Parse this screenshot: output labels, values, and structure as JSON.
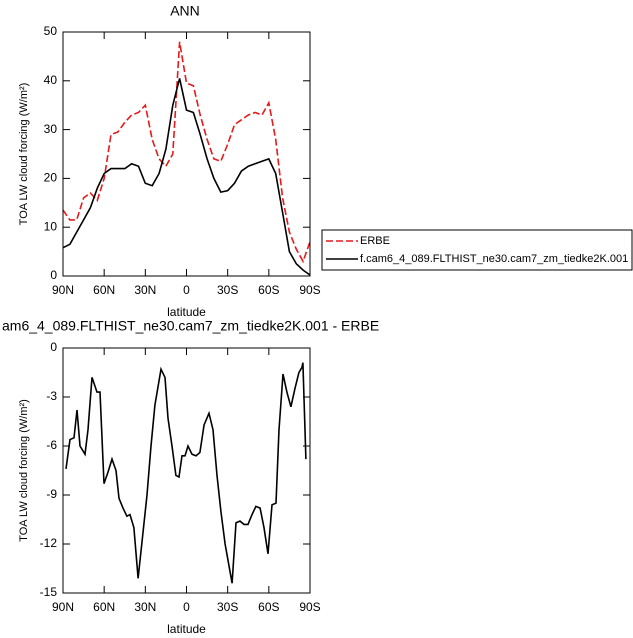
{
  "chart_data": [
    {
      "type": "line",
      "title": "ANN",
      "xlabel": "latitude",
      "ylabel": "TOA LW cloud forcing (W/m²)",
      "x": [
        90,
        85,
        80,
        75,
        70,
        65,
        60,
        55,
        50,
        45,
        40,
        35,
        30,
        25,
        20,
        15,
        10,
        5,
        0,
        -5,
        -10,
        -15,
        -20,
        -25,
        -30,
        -35,
        -40,
        -45,
        -50,
        -55,
        -60,
        -65,
        -70,
        -75,
        -80,
        -85,
        -90
      ],
      "series": [
        {
          "name": "ERBE",
          "color": "#e41a1c",
          "dash": "dashed",
          "values": [
            13.5,
            11.5,
            11.5,
            16,
            17,
            15.5,
            20,
            29,
            29.5,
            31.5,
            33,
            33.5,
            35,
            28,
            24,
            22.5,
            25,
            48,
            39.5,
            39,
            33,
            28,
            24,
            23.5,
            27,
            31,
            32,
            33,
            33.5,
            33,
            35.5,
            28,
            16,
            9,
            5.5,
            3,
            7
          ]
        },
        {
          "name": "f.cam6_4_089.FLTHIST_ne30.cam7_zm_tiedke2K.001",
          "color": "#000000",
          "dash": "solid",
          "values": [
            5.8,
            6.5,
            9,
            11.5,
            14,
            18,
            21,
            22,
            22,
            22,
            23,
            22.5,
            19,
            18.5,
            21,
            26,
            35,
            40.5,
            34,
            33.5,
            29,
            24,
            20,
            17.2,
            17.5,
            19,
            21.5,
            22.5,
            23,
            23.5,
            24,
            21,
            13,
            5,
            2.5,
            1.2,
            0.2
          ]
        }
      ],
      "xlim": [
        90,
        -90
      ],
      "xticks": [
        {
          "value": 90,
          "label": "90N"
        },
        {
          "value": 60,
          "label": "60N"
        },
        {
          "value": 30,
          "label": "30N"
        },
        0,
        {
          "value": -30,
          "label": "30S"
        },
        {
          "value": -60,
          "label": "60S"
        },
        {
          "value": -90,
          "label": "90S"
        }
      ],
      "ylim": [
        0,
        50
      ],
      "yticks": [
        0,
        10,
        20,
        30,
        40,
        50
      ],
      "legend": "right"
    },
    {
      "type": "line",
      "title": "am6_4_089.FLTHIST_ne30.cam7_zm_tiedke2K.001 - ERBE",
      "xlabel": "latitude",
      "ylabel": "TOA LW cloud forcing (W/m²)",
      "x": [
        87.8,
        84.9,
        82.0,
        79.8,
        77.6,
        74.0,
        71.8,
        68.9,
        65.2,
        63.0,
        60.1,
        57.2,
        54.3,
        51.4,
        49.2,
        46.3,
        43.4,
        41.2,
        38.3,
        35.3,
        31.7,
        28.8,
        25.9,
        23.0,
        18.6,
        15.7,
        13.5,
        10.6,
        7.7,
        5.5,
        3.3,
        1.1,
        -1.1,
        -4.0,
        -6.9,
        -9.8,
        -12.8,
        -16.4,
        -19.3,
        -22.2,
        -25.1,
        -28.1,
        -33.2,
        -36.1,
        -39.0,
        -41.9,
        -44.8,
        -47.7,
        -50.6,
        -53.6,
        -56.5,
        -59.4,
        -62.3,
        -65.2,
        -67.4,
        -70.3,
        -73.2,
        -76.1,
        -79.0,
        -81.9,
        -84.1,
        -84.8,
        -87.0
      ],
      "series": [
        {
          "color": "#000000",
          "dash": "solid",
          "values": [
            -7.4,
            -5.6,
            -5.5,
            -3.8,
            -6,
            -6.5,
            -5,
            -1.8,
            -2.7,
            -2.7,
            -8.3,
            -7.6,
            -6.8,
            -7.5,
            -9.2,
            -9.8,
            -10.3,
            -10.2,
            -11,
            -14.1,
            -11.3,
            -9,
            -6,
            -3.5,
            -1.3,
            -1.8,
            -4.3,
            -6,
            -7.8,
            -7.9,
            -6.6,
            -6.6,
            -6,
            -6.5,
            -6.6,
            -6.4,
            -4.7,
            -4,
            -5,
            -7.8,
            -10,
            -12,
            -14.4,
            -10.7,
            -10.6,
            -10.8,
            -10.8,
            -10.2,
            -9.7,
            -9.8,
            -11,
            -12.6,
            -9.6,
            -9.5,
            -5,
            -1.6,
            -2.7,
            -3.6,
            -2.5,
            -1.5,
            -1.2,
            -0.9,
            -6.8
          ]
        }
      ],
      "xlim": [
        90,
        -90
      ],
      "xticks": [
        {
          "value": 90,
          "label": "90N"
        },
        {
          "value": 60,
          "label": "60N"
        },
        {
          "value": 30,
          "label": "30N"
        },
        0,
        {
          "value": -30,
          "label": "30S"
        },
        {
          "value": -60,
          "label": "60S"
        },
        {
          "value": -90,
          "label": "90S"
        }
      ],
      "ylim": [
        -15,
        0
      ],
      "yticks": [
        0,
        -3,
        -6,
        -9,
        -12,
        -15
      ]
    }
  ]
}
